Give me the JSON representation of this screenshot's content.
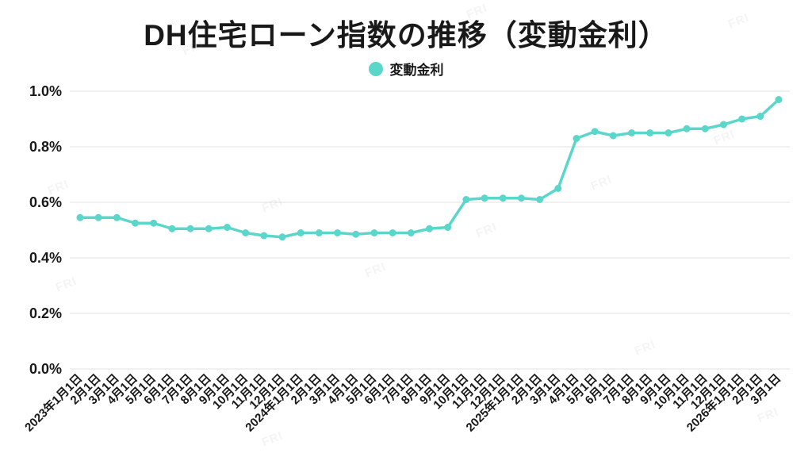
{
  "title": "DH住宅ローン指数の推移（変動金利）",
  "legend": {
    "label": "変動金利",
    "color": "#5bd6cb"
  },
  "watermark": "FRI",
  "colors": {
    "line": "#5bd6cb",
    "grid": "#e0e0e0",
    "text": "#191919"
  },
  "chart_data": {
    "type": "line",
    "title": "DH住宅ローン指数の推移（変動金利）",
    "xlabel": "",
    "ylabel": "",
    "ylim": [
      0.0,
      1.0
    ],
    "grid": true,
    "legend_position": "top",
    "yticks": [
      "0.0%",
      "0.2%",
      "0.4%",
      "0.6%",
      "0.8%",
      "1.0%"
    ],
    "categories": [
      "2023年1月1日",
      "2月1日",
      "3月1日",
      "4月1日",
      "5月1日",
      "6月1日",
      "7月1日",
      "8月1日",
      "9月1日",
      "10月1日",
      "11月1日",
      "12月1日",
      "2024年1月1日",
      "2月1日",
      "3月1日",
      "4月1日",
      "5月1日",
      "6月1日",
      "7月1日",
      "8月1日",
      "9月1日",
      "10月1日",
      "11月1日",
      "12月1日",
      "2025年1月1日",
      "2月1日",
      "3月1日",
      "4月1日",
      "5月1日",
      "6月1日",
      "7月1日",
      "8月1日",
      "9月1日",
      "10月1日",
      "11月1日",
      "12月1日",
      "2026年1月1日",
      "2月1日",
      "3月1日"
    ],
    "series": [
      {
        "name": "変動金利",
        "unit": "%",
        "values": [
          0.545,
          0.545,
          0.545,
          0.525,
          0.525,
          0.505,
          0.505,
          0.505,
          0.51,
          0.49,
          0.48,
          0.475,
          0.49,
          0.49,
          0.49,
          0.485,
          0.49,
          0.49,
          0.49,
          0.505,
          0.51,
          0.61,
          0.615,
          0.615,
          0.615,
          0.61,
          0.65,
          0.83,
          0.855,
          0.84,
          0.85,
          0.85,
          0.85,
          0.865,
          0.865,
          0.88,
          0.9,
          0.91,
          0.97
        ]
      }
    ]
  }
}
